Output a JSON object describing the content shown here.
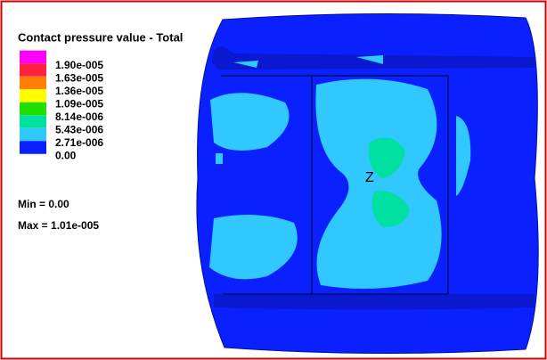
{
  "panel": {
    "title": "Contact pressure value - Total",
    "legend": [
      {
        "label": "1.90e-005",
        "color": "#ff00ff"
      },
      {
        "label": "1.63e-005",
        "color": "#ff2040"
      },
      {
        "label": "1.36e-005",
        "color": "#ff7f00"
      },
      {
        "label": "1.09e-005",
        "color": "#ffff00"
      },
      {
        "label": "8.14e-006",
        "color": "#20e000"
      },
      {
        "label": "5.43e-006",
        "color": "#00e0a0"
      },
      {
        "label": "2.71e-006",
        "color": "#30c8ff"
      },
      {
        "label": "0.00",
        "color": "#0a20ff"
      }
    ],
    "min_text": "Min = 0.00",
    "max_text": "Max = 1.01e-005",
    "axis_label": "Z"
  }
}
